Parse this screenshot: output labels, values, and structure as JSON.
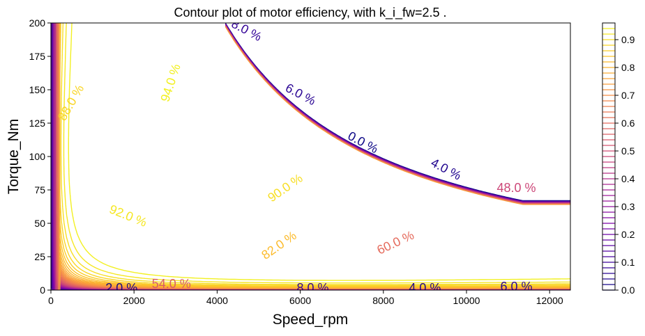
{
  "chart_data": {
    "type": "contour",
    "title": "Contour plot of motor efficiency, with k_i_fw=2.5 .",
    "xlabel": "Speed_rpm",
    "ylabel": "Torque_Nm",
    "xlim": [
      0,
      12500
    ],
    "ylim": [
      0,
      200
    ],
    "xticks": [
      "0",
      "2000",
      "4000",
      "6000",
      "8000",
      "10000",
      "12000"
    ],
    "yticks": [
      "0",
      "25",
      "50",
      "75",
      "100",
      "125",
      "150",
      "175",
      "200"
    ],
    "colormap": "plasma",
    "colorbar": {
      "range": [
        0.0,
        0.96
      ],
      "ticks": [
        "0.0",
        "0.1",
        "0.2",
        "0.3",
        "0.4",
        "0.5",
        "0.6",
        "0.7",
        "0.8",
        "0.9"
      ]
    },
    "contour_labels": [
      {
        "text": "94.0 %",
        "x": 2900,
        "y": 155,
        "level": 0.94
      },
      {
        "text": "92.0 %",
        "x": 1850,
        "y": 55,
        "level": 0.92
      },
      {
        "text": "90.0 %",
        "x": 5650,
        "y": 76,
        "level": 0.9
      },
      {
        "text": "82.0 %",
        "x": 5500,
        "y": 33,
        "level": 0.82
      },
      {
        "text": "60.0 %",
        "x": 8300,
        "y": 35,
        "level": 0.6
      },
      {
        "text": "88.0 %",
        "x": 500,
        "y": 140,
        "level": 0.88
      },
      {
        "text": "8.0 %",
        "x": 4700,
        "y": 194,
        "level": 0.08
      },
      {
        "text": "6.0 %",
        "x": 6000,
        "y": 146,
        "level": 0.06
      },
      {
        "text": "0.0 %",
        "x": 7500,
        "y": 110,
        "level": 0.0
      },
      {
        "text": "4.0 %",
        "x": 9500,
        "y": 90,
        "level": 0.04
      },
      {
        "text": "48.0 %",
        "x": 11200,
        "y": 76,
        "level": 0.48
      },
      {
        "text": "2.0 %",
        "x": 1700,
        "y": 1,
        "level": 0.02
      },
      {
        "text": "54.0 %",
        "x": 2900,
        "y": 4,
        "level": 0.54
      },
      {
        "text": "8.0 %",
        "x": 6300,
        "y": 1,
        "level": 0.08
      },
      {
        "text": "4.0 %",
        "x": 9000,
        "y": 1,
        "level": 0.04
      },
      {
        "text": "6.0 %",
        "x": 11200,
        "y": 2,
        "level": 0.06
      }
    ],
    "grid": false
  }
}
